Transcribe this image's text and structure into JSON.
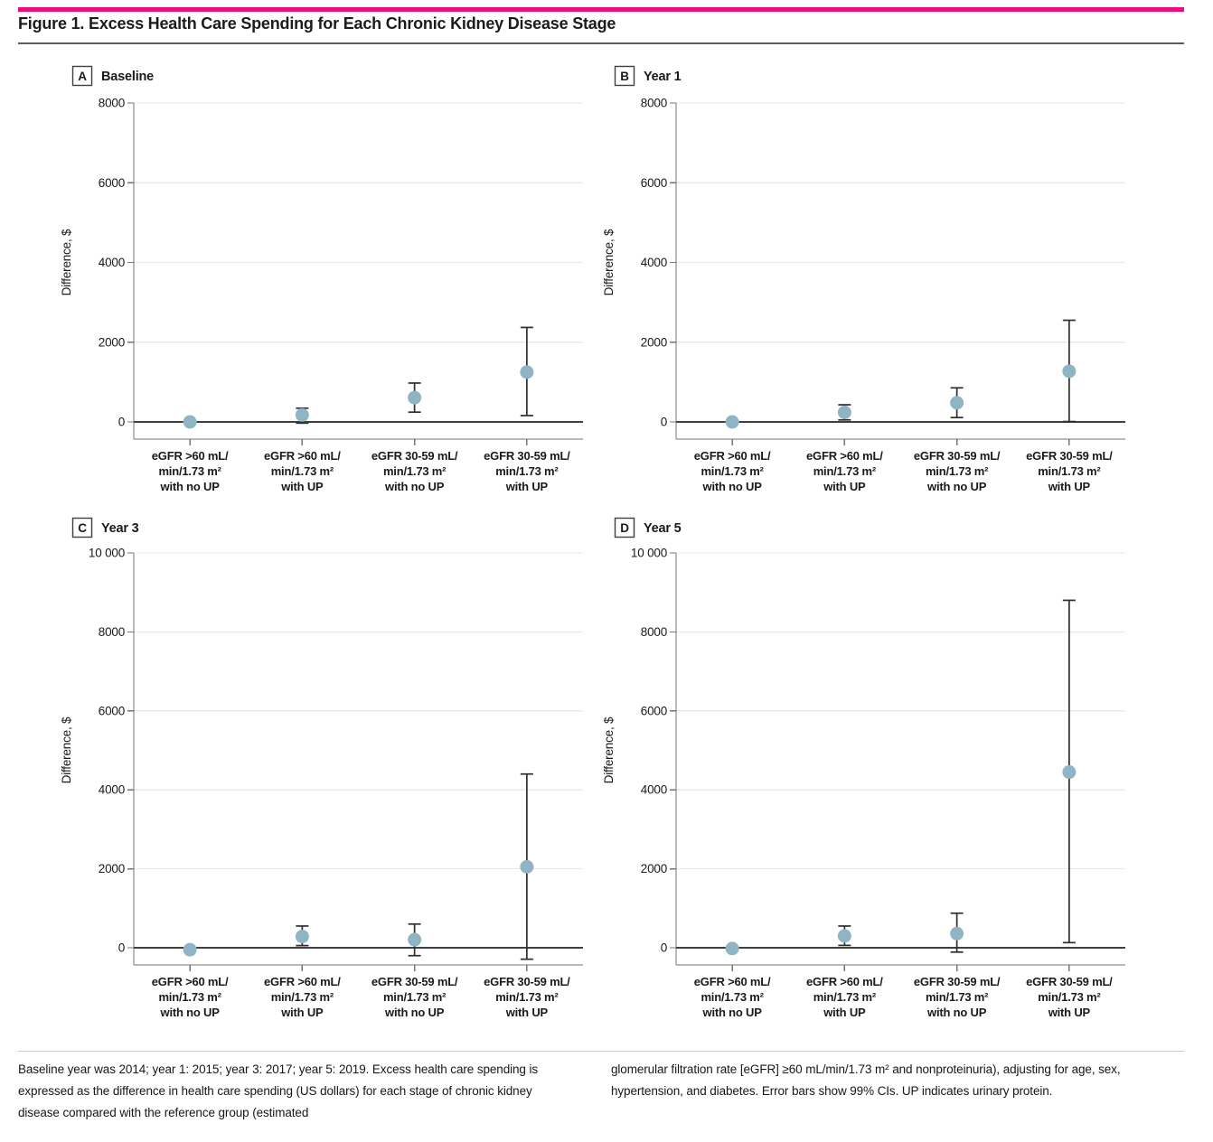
{
  "page": {
    "title": "Figure 1. Excess Health Care Spending for Each Chronic Kidney Disease Stage",
    "accent_color": "#ee0c7d",
    "marker_color": "#8fb5c5",
    "error_bar_color": "#2e2e2e"
  },
  "footnote": {
    "left": "Baseline year was 2014; year 1: 2015; year 3: 2017; year 5: 2019. Excess health care spending is expressed as the difference in health care spending (US dollars) for each stage of chronic kidney disease compared with the reference group (estimated",
    "right": "glomerular filtration rate [eGFR] ≥60 mL/min/1.73 m² and nonproteinuria), adjusting for age, sex, hypertension, and diabetes. Error bars show 99% CIs. UP indicates urinary protein."
  },
  "chart_data": [
    {
      "type": "scatter",
      "panel_letter": "A",
      "title": "Baseline",
      "ylabel": "Difference, $",
      "ylim": [
        -430,
        8000
      ],
      "yticks": [
        0,
        2000,
        4000,
        6000,
        8000
      ],
      "ytick_labels": [
        "0",
        "2000",
        "4000",
        "6000",
        "8000"
      ],
      "grid": "horizontal-light",
      "categories": [
        [
          "eGFR >60 mL/",
          "min/1.73 m²",
          "with no UP"
        ],
        [
          "eGFR >60 mL/",
          "min/1.73 m²",
          "with UP"
        ],
        [
          "eGFR 30-59 mL/",
          "min/1.73 m²",
          "with no UP"
        ],
        [
          "eGFR 30-59 mL/",
          "min/1.73 m²",
          "with UP"
        ]
      ],
      "points": [
        {
          "estimate": 0,
          "ci_low": null,
          "ci_high": null
        },
        {
          "estimate": 175,
          "ci_low": -30,
          "ci_high": 345
        },
        {
          "estimate": 610,
          "ci_low": 245,
          "ci_high": 975
        },
        {
          "estimate": 1250,
          "ci_low": 160,
          "ci_high": 2370
        }
      ]
    },
    {
      "type": "scatter",
      "panel_letter": "B",
      "title": "Year 1",
      "ylabel": "Difference, $",
      "ylim": [
        -430,
        8000
      ],
      "yticks": [
        0,
        2000,
        4000,
        6000,
        8000
      ],
      "ytick_labels": [
        "0",
        "2000",
        "4000",
        "6000",
        "8000"
      ],
      "grid": "horizontal-light",
      "categories": [
        [
          "eGFR >60 mL/",
          "min/1.73 m²",
          "with no UP"
        ],
        [
          "eGFR >60 mL/",
          "min/1.73 m²",
          "with UP"
        ],
        [
          "eGFR 30-59 mL/",
          "min/1.73 m²",
          "with no UP"
        ],
        [
          "eGFR 30-59 mL/",
          "min/1.73 m²",
          "with UP"
        ]
      ],
      "points": [
        {
          "estimate": 0,
          "ci_low": null,
          "ci_high": null
        },
        {
          "estimate": 240,
          "ci_low": 50,
          "ci_high": 430
        },
        {
          "estimate": 480,
          "ci_low": 110,
          "ci_high": 855
        },
        {
          "estimate": 1270,
          "ci_low": 10,
          "ci_high": 2550
        }
      ]
    },
    {
      "type": "scatter",
      "panel_letter": "C",
      "title": "Year 3",
      "ylabel": "Difference, $",
      "ylim": [
        -450,
        10000
      ],
      "yticks": [
        0,
        2000,
        4000,
        6000,
        8000,
        10000
      ],
      "ytick_labels": [
        "0",
        "2000",
        "4000",
        "6000",
        "8000",
        "10 000"
      ],
      "grid": "horizontal-light",
      "categories": [
        [
          "eGFR >60 mL/",
          "min/1.73 m²",
          "with no UP"
        ],
        [
          "eGFR >60 mL/",
          "min/1.73 m²",
          "with UP"
        ],
        [
          "eGFR 30-59 mL/",
          "min/1.73 m²",
          "with no UP"
        ],
        [
          "eGFR 30-59 mL/",
          "min/1.73 m²",
          "with UP"
        ]
      ],
      "points": [
        {
          "estimate": -50,
          "ci_low": null,
          "ci_high": null
        },
        {
          "estimate": 285,
          "ci_low": 55,
          "ci_high": 550
        },
        {
          "estimate": 205,
          "ci_low": -200,
          "ci_high": 600
        },
        {
          "estimate": 2050,
          "ci_low": -290,
          "ci_high": 4400
        }
      ]
    },
    {
      "type": "scatter",
      "panel_letter": "D",
      "title": "Year 5",
      "ylabel": "Difference, $",
      "ylim": [
        -450,
        10000
      ],
      "yticks": [
        0,
        2000,
        4000,
        6000,
        8000,
        10000
      ],
      "ytick_labels": [
        "0",
        "2000",
        "4000",
        "6000",
        "8000",
        "10 000"
      ],
      "grid": "horizontal-light",
      "categories": [
        [
          "eGFR >60 mL/",
          "min/1.73 m²",
          "with no UP"
        ],
        [
          "eGFR >60 mL/",
          "min/1.73 m²",
          "with UP"
        ],
        [
          "eGFR 30-59 mL/",
          "min/1.73 m²",
          "with no UP"
        ],
        [
          "eGFR 30-59 mL/",
          "min/1.73 m²",
          "with UP"
        ]
      ],
      "points": [
        {
          "estimate": -20,
          "ci_low": null,
          "ci_high": null
        },
        {
          "estimate": 300,
          "ci_low": 60,
          "ci_high": 550
        },
        {
          "estimate": 360,
          "ci_low": -110,
          "ci_high": 875
        },
        {
          "estimate": 4450,
          "ci_low": 130,
          "ci_high": 8800
        }
      ]
    }
  ]
}
